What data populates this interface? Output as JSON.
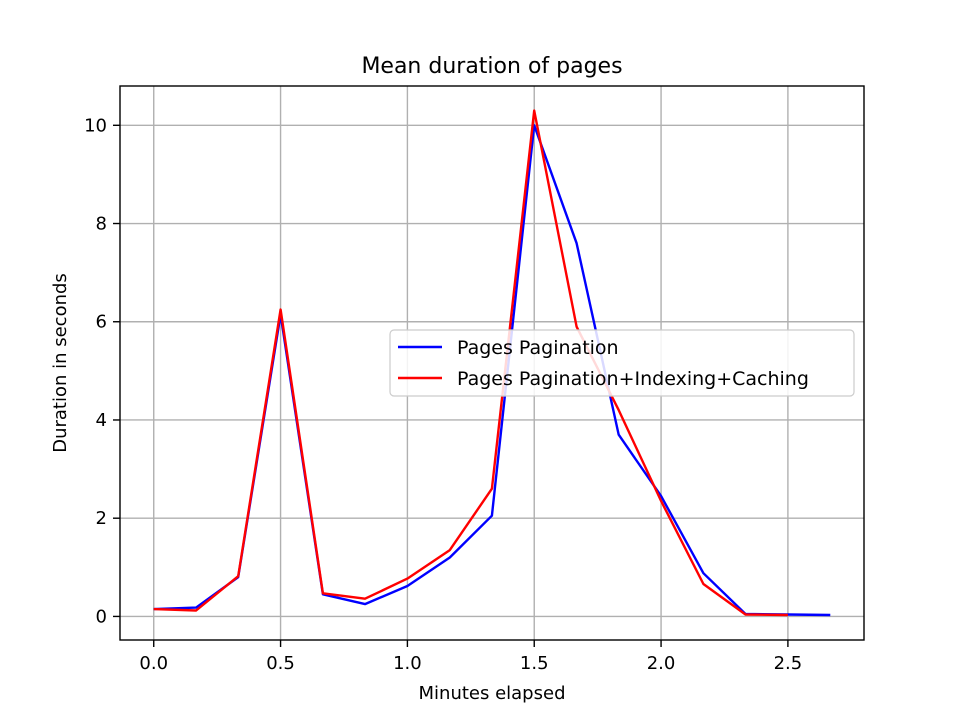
{
  "chart_data": {
    "type": "line",
    "title": "Mean duration of pages",
    "xlabel": "Minutes elapsed",
    "ylabel": "Duration in seconds",
    "xlim": [
      -0.133,
      2.8
    ],
    "ylim": [
      -0.48,
      10.8
    ],
    "xticks": [
      0.0,
      0.5,
      1.0,
      1.5,
      2.0,
      2.5
    ],
    "xtick_labels": [
      "0.0",
      "0.5",
      "1.0",
      "1.5",
      "2.0",
      "2.5"
    ],
    "yticks": [
      0,
      2,
      4,
      6,
      8,
      10
    ],
    "ytick_labels": [
      "0",
      "2",
      "4",
      "6",
      "8",
      "10"
    ],
    "grid": true,
    "legend_position": "center-right",
    "series": [
      {
        "name": "Pages Pagination",
        "color": "#0000ff",
        "x": [
          0.0,
          0.167,
          0.333,
          0.5,
          0.667,
          0.833,
          1.0,
          1.167,
          1.333,
          1.5,
          1.667,
          1.833,
          2.0,
          2.167,
          2.333,
          2.5,
          2.667
        ],
        "y": [
          0.15,
          0.18,
          0.8,
          6.15,
          0.45,
          0.25,
          0.62,
          1.2,
          2.05,
          10.0,
          7.6,
          3.7,
          2.45,
          0.88,
          0.05,
          0.04,
          0.03
        ]
      },
      {
        "name": "Pages Pagination+Indexing+Caching",
        "color": "#ff0000",
        "x": [
          0.0,
          0.167,
          0.333,
          0.5,
          0.667,
          0.833,
          1.0,
          1.167,
          1.333,
          1.5,
          1.667,
          1.833,
          2.0,
          2.167,
          2.333,
          2.5
        ],
        "y": [
          0.15,
          0.12,
          0.82,
          6.25,
          0.47,
          0.36,
          0.77,
          1.35,
          2.6,
          10.3,
          5.9,
          4.2,
          2.35,
          0.66,
          0.04,
          0.03
        ]
      }
    ]
  }
}
